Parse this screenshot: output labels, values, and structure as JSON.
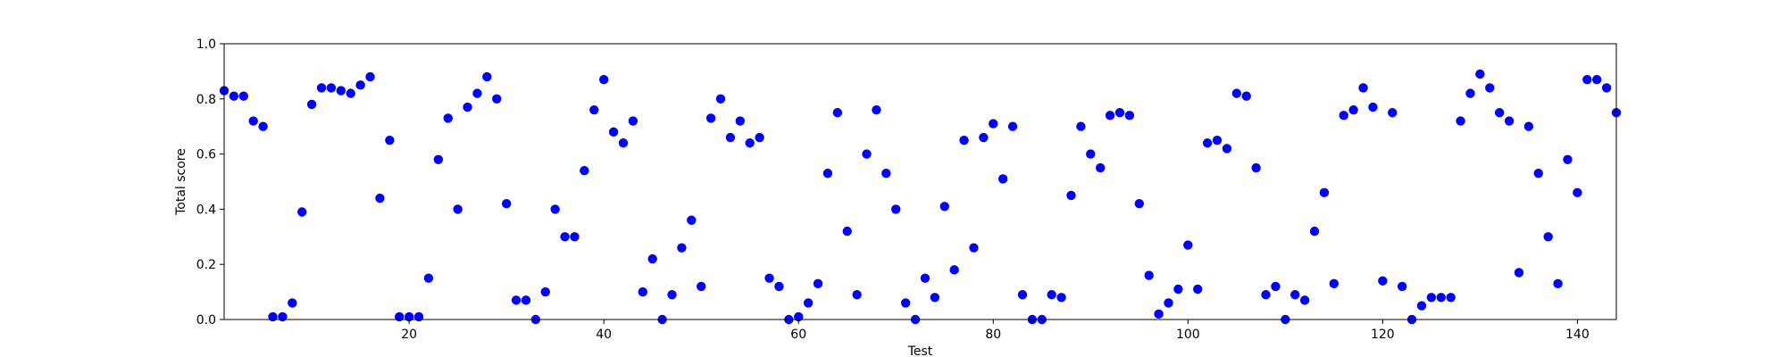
{
  "chart_data": {
    "type": "scatter",
    "title": "",
    "xlabel": "Test",
    "ylabel": "Total score",
    "xlim": [
      1,
      144
    ],
    "ylim": [
      0.0,
      1.0
    ],
    "xticks": [
      20,
      40,
      60,
      80,
      100,
      120,
      140
    ],
    "yticks": [
      "0.0",
      "0.2",
      "0.4",
      "0.6",
      "0.8",
      "1.0"
    ],
    "grid": false,
    "legend": "none",
    "marker_color": "#0000ff",
    "series": [
      {
        "x": [
          1,
          2,
          3,
          4,
          5,
          6,
          7,
          8,
          9,
          10,
          11,
          12,
          13,
          14,
          15,
          16,
          17,
          18,
          19,
          20,
          21,
          22,
          23,
          24,
          25,
          26,
          27,
          28,
          29,
          30,
          31,
          32,
          33,
          34,
          35,
          36,
          37,
          38,
          39,
          40,
          41,
          42,
          43,
          44,
          45,
          46,
          47,
          48,
          49,
          50,
          51,
          52,
          53,
          54,
          55,
          56,
          57,
          58,
          59,
          60,
          61,
          62,
          63,
          64,
          65,
          66,
          67,
          68,
          69,
          70,
          71,
          72,
          73,
          74,
          75,
          76,
          77,
          78,
          79,
          80,
          81,
          82,
          83,
          84,
          85,
          86,
          87,
          88,
          89,
          90,
          91,
          92,
          93,
          94,
          95,
          96,
          97,
          98,
          99,
          100,
          101,
          102,
          103,
          104,
          105,
          106,
          107,
          108,
          109,
          110,
          111,
          112,
          113,
          114,
          115,
          116,
          117,
          118,
          119,
          120,
          121,
          122,
          123,
          124,
          125,
          126,
          127,
          128,
          129,
          130,
          131,
          132,
          133,
          134,
          135,
          136,
          137,
          138,
          139,
          140,
          141,
          142,
          143,
          144
        ],
        "y": [
          0.83,
          0.81,
          0.81,
          0.72,
          0.7,
          0.01,
          0.01,
          0.06,
          0.39,
          0.78,
          0.84,
          0.84,
          0.83,
          0.82,
          0.85,
          0.88,
          0.44,
          0.65,
          0.01,
          0.01,
          0.01,
          0.15,
          0.58,
          0.73,
          0.4,
          0.77,
          0.82,
          0.88,
          0.8,
          0.42,
          0.07,
          0.07,
          0.0,
          0.1,
          0.4,
          0.3,
          0.3,
          0.54,
          0.76,
          0.87,
          0.68,
          0.64,
          0.72,
          0.1,
          0.22,
          0.0,
          0.09,
          0.26,
          0.36,
          0.12,
          0.73,
          0.8,
          0.66,
          0.72,
          0.64,
          0.66,
          0.15,
          0.12,
          0.0,
          0.01,
          0.06,
          0.13,
          0.53,
          0.75,
          0.32,
          0.09,
          0.6,
          0.76,
          0.53,
          0.4,
          0.06,
          0.0,
          0.15,
          0.08,
          0.41,
          0.18,
          0.65,
          0.26,
          0.66,
          0.71,
          0.51,
          0.7,
          0.09,
          0.0,
          0.0,
          0.09,
          0.08,
          0.45,
          0.7,
          0.6,
          0.55,
          0.74,
          0.75,
          0.74,
          0.42,
          0.16,
          0.02,
          0.06,
          0.11,
          0.27,
          0.11,
          0.64,
          0.65,
          0.62,
          0.82,
          0.81,
          0.55,
          0.09,
          0.12,
          0.0,
          0.09,
          0.07,
          0.32,
          0.46,
          0.13,
          0.74,
          0.76,
          0.84,
          0.77,
          0.14,
          0.75,
          0.12,
          0.0,
          0.05,
          0.08,
          0.08,
          0.08,
          0.72,
          0.82,
          0.89,
          0.84,
          0.75,
          0.72,
          0.17,
          0.7,
          0.53,
          0.3,
          0.13,
          0.58,
          0.46,
          0.87,
          0.87,
          0.84,
          0.75
        ]
      }
    ]
  }
}
